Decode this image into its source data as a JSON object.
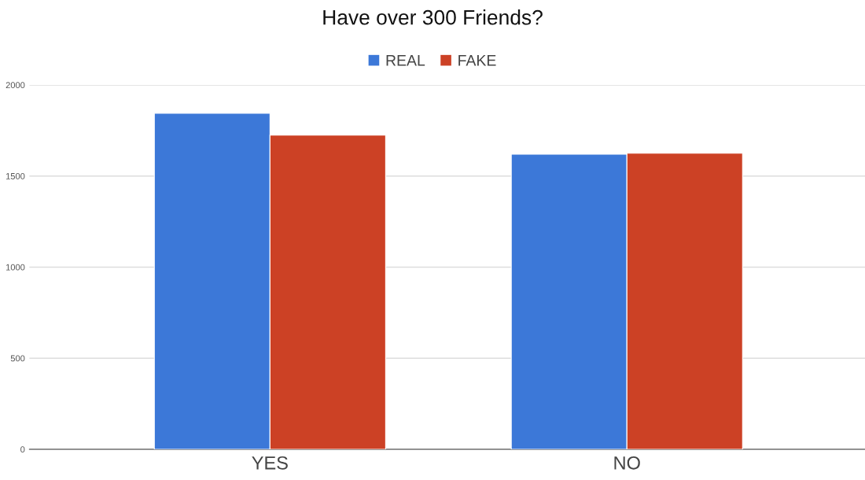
{
  "chart_data": {
    "type": "bar",
    "title": "Have over 300 Friends?",
    "categories": [
      "YES",
      "NO"
    ],
    "series": [
      {
        "name": "REAL",
        "color": "#3c78d8",
        "values": [
          1845,
          1620
        ]
      },
      {
        "name": "FAKE",
        "color": "#cc4125",
        "values": [
          1725,
          1625
        ]
      }
    ],
    "ylim": [
      0,
      2000
    ],
    "yticks": [
      0,
      500,
      1000,
      1500,
      2000
    ],
    "grid": "y",
    "legend": "top"
  }
}
